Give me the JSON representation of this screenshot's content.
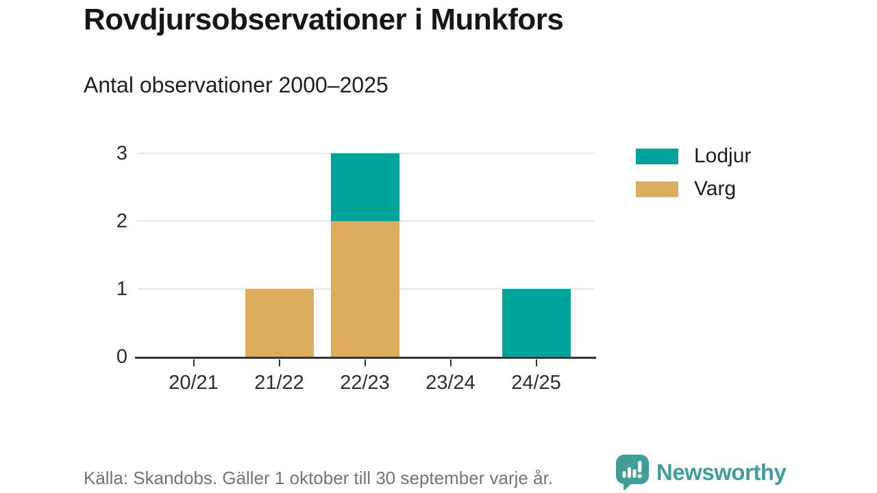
{
  "header": {
    "title": "Rovdjursobservationer i Munkfors",
    "subtitle": "Antal observationer 2000–2025"
  },
  "chart_data": {
    "type": "bar",
    "stacked": true,
    "title": "Rovdjursobservationer i Munkfors",
    "subtitle": "Antal observationer 2000–2025",
    "categories": [
      "20/21",
      "21/22",
      "22/23",
      "23/24",
      "24/25"
    ],
    "series": [
      {
        "name": "Lodjur",
        "color": "#00A49B",
        "values": [
          0,
          0,
          1,
          0,
          1
        ]
      },
      {
        "name": "Varg",
        "color": "#DCAD5C",
        "values": [
          0,
          1,
          2,
          0,
          0
        ]
      }
    ],
    "stack_order_bottom_to_top": [
      "Varg",
      "Lodjur"
    ],
    "xlabel": "",
    "ylabel": "",
    "ylim": [
      0,
      3
    ],
    "yticks": [
      0,
      1,
      2,
      3
    ],
    "grid": true,
    "legend_position": "right"
  },
  "legend": {
    "items": [
      {
        "label": "Lodjur",
        "color": "#00A49B"
      },
      {
        "label": "Varg",
        "color": "#DCAD5C"
      }
    ]
  },
  "footer": {
    "source": "Källa: Skandobs. Gäller 1 oktober till 30 september varje år.",
    "brand": "Newsworthy"
  },
  "colors": {
    "brand": "#3F9E98",
    "lodjur": "#00A49B",
    "varg": "#DCAD5C",
    "axis": "#333333",
    "gridline": "#E6E6E6",
    "source_text": "#6F7480"
  }
}
